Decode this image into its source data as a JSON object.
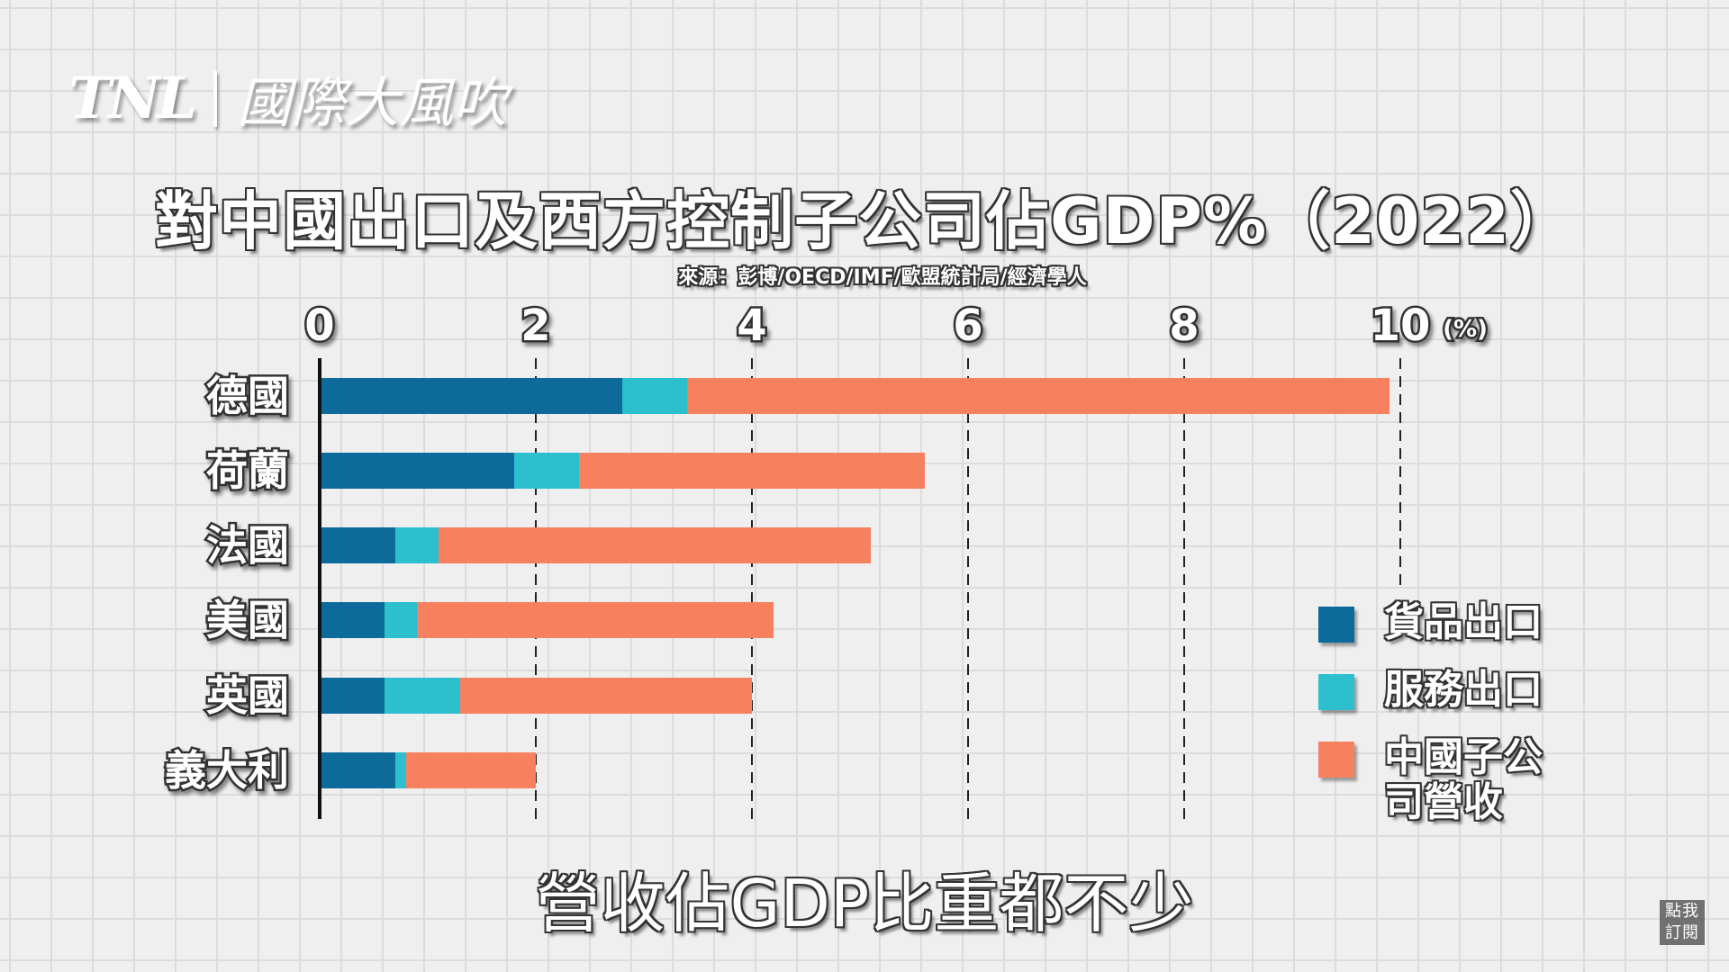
{
  "logo": {
    "brand": "TNL",
    "name": "國際大風吹"
  },
  "caption": "營收佔GDP比重都不少",
  "subscribe": {
    "line1": "點我",
    "line2": "訂閱"
  },
  "chart_data": {
    "type": "bar",
    "orientation": "horizontal",
    "stacked": true,
    "title": "對中國出口及西方控制子公司佔GDP%（2022）",
    "source": "來源：彭博/OECD/IMF/歐盟統計局/經濟學人",
    "categories": [
      "德國",
      "荷蘭",
      "法國",
      "美國",
      "英國",
      "義大利"
    ],
    "series": [
      {
        "name": "貨品出口",
        "color": "#0d6b9b",
        "values": [
          2.8,
          1.8,
          0.7,
          0.6,
          0.6,
          0.7
        ]
      },
      {
        "name": "服務出口",
        "color": "#2cc0cf",
        "values": [
          0.6,
          0.6,
          0.4,
          0.3,
          0.7,
          0.1
        ]
      },
      {
        "name": "中國子公司營收",
        "color": "#f7805f",
        "values": [
          6.5,
          3.2,
          4.0,
          3.3,
          2.7,
          1.2
        ]
      }
    ],
    "xlim": [
      0,
      10
    ],
    "xticks": [
      "0",
      "2",
      "4",
      "6",
      "8",
      "10"
    ],
    "unit": "(%)",
    "grid": "vertical dashed",
    "legend": "right"
  }
}
